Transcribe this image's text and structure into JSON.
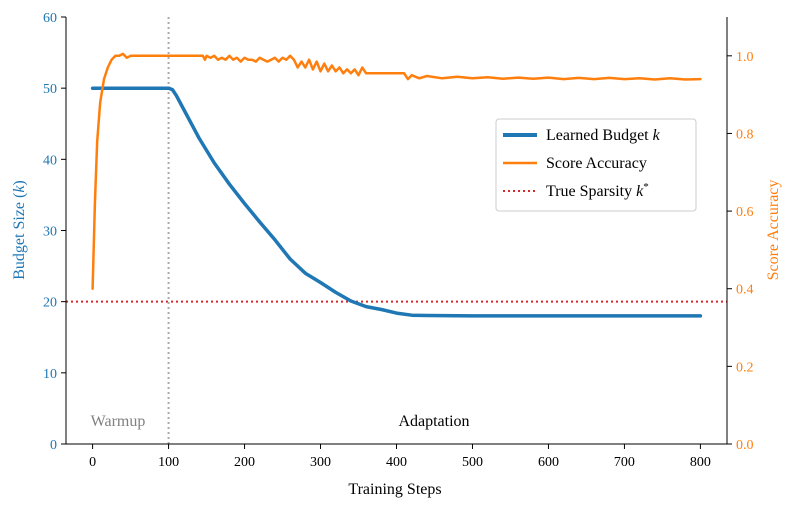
{
  "chart_data": {
    "type": "line",
    "title": "",
    "xlabel": "Training Steps",
    "ylabel_left": "Budget Size (k)",
    "ylabel_right": "Score Accuracy",
    "xlim": [
      -35,
      835
    ],
    "ylim_left": [
      0,
      60
    ],
    "ylim_right": [
      0,
      1.1
    ],
    "x_ticks": [
      0,
      100,
      200,
      300,
      400,
      500,
      600,
      700,
      800
    ],
    "y_left_ticks": [
      0,
      10,
      20,
      30,
      40,
      50,
      60
    ],
    "y_right_ticks": [
      0.0,
      0.2,
      0.4,
      0.6,
      0.8,
      1.0
    ],
    "y_right_tick_labels": [
      "0.0",
      "0.2",
      "0.4",
      "0.6",
      "0.8",
      "1.0"
    ],
    "left_axis_color": "#1f77b4",
    "right_axis_color": "#ff7f0e",
    "series": [
      {
        "name": "Learned Budget k",
        "axis": "left",
        "color": "#1f77b4",
        "x": [
          0,
          20,
          40,
          60,
          80,
          100,
          105,
          110,
          120,
          140,
          160,
          180,
          200,
          220,
          240,
          260,
          280,
          300,
          320,
          340,
          360,
          380,
          400,
          420,
          440,
          500,
          600,
          700,
          800
        ],
        "y": [
          50,
          50,
          50,
          50,
          50,
          50,
          49.8,
          49,
          47,
          43,
          39.5,
          36.5,
          33.8,
          31.2,
          28.7,
          26,
          24,
          22.7,
          21.3,
          20.1,
          19.3,
          18.9,
          18.4,
          18.1,
          18.05,
          18,
          18,
          18,
          18
        ]
      },
      {
        "name": "Score Accuracy",
        "axis": "right",
        "color": "#ff7f0e",
        "x": [
          0,
          3,
          6,
          10,
          15,
          20,
          25,
          30,
          35,
          40,
          45,
          50,
          60,
          80,
          100,
          120,
          145,
          148,
          150,
          155,
          160,
          165,
          170,
          175,
          180,
          185,
          190,
          195,
          200,
          205,
          210,
          215,
          220,
          225,
          230,
          235,
          240,
          245,
          250,
          255,
          260,
          265,
          270,
          275,
          280,
          285,
          290,
          295,
          300,
          305,
          310,
          315,
          320,
          325,
          330,
          335,
          340,
          345,
          350,
          355,
          360,
          370,
          380,
          390,
          400,
          410,
          415,
          420,
          430,
          440,
          460,
          480,
          500,
          520,
          540,
          560,
          580,
          600,
          620,
          640,
          660,
          680,
          700,
          720,
          740,
          760,
          780,
          800
        ],
        "y": [
          0.4,
          0.62,
          0.78,
          0.88,
          0.94,
          0.97,
          0.99,
          1.0,
          1.0,
          1.005,
          0.995,
          1.0,
          1.0,
          1.0,
          1.0,
          1.0,
          1.0,
          0.99,
          1.0,
          0.995,
          1.0,
          0.99,
          0.995,
          0.99,
          1.0,
          0.99,
          0.995,
          0.985,
          0.995,
          0.99,
          0.99,
          0.985,
          0.995,
          0.99,
          0.985,
          0.99,
          0.995,
          0.985,
          0.995,
          0.99,
          1.0,
          0.99,
          0.97,
          0.985,
          0.97,
          0.99,
          0.965,
          0.985,
          0.96,
          0.98,
          0.96,
          0.975,
          0.96,
          0.97,
          0.955,
          0.965,
          0.955,
          0.965,
          0.95,
          0.97,
          0.955,
          0.955,
          0.955,
          0.955,
          0.955,
          0.955,
          0.94,
          0.95,
          0.942,
          0.948,
          0.942,
          0.946,
          0.942,
          0.945,
          0.941,
          0.944,
          0.941,
          0.944,
          0.94,
          0.943,
          0.94,
          0.943,
          0.94,
          0.942,
          0.939,
          0.942,
          0.939,
          0.94
        ]
      }
    ],
    "reference_lines": [
      {
        "name": "True Sparsity k*",
        "axis": "left",
        "orientation": "horizontal",
        "value": 20,
        "color": "#d62728",
        "style": "dotted"
      },
      {
        "name": "warmup-boundary",
        "axis": "x",
        "orientation": "vertical",
        "value": 100,
        "color": "#aaaaaa",
        "style": "dotted"
      }
    ],
    "legend": {
      "placement": "center-right",
      "entries": [
        {
          "label": "Learned Budget ",
          "label_italic": "k",
          "label_sup": "",
          "color": "#1f77b4",
          "style": "solid-thick"
        },
        {
          "label": "Score Accuracy",
          "label_italic": "",
          "label_sup": "",
          "color": "#ff7f0e",
          "style": "solid"
        },
        {
          "label": "True Sparsity ",
          "label_italic": "k",
          "label_sup": "*",
          "color": "#d62728",
          "style": "dotted"
        }
      ]
    },
    "annotations": [
      {
        "text": "Warmup",
        "color": "#808080"
      },
      {
        "text": "Adaptation",
        "color": "#000000"
      }
    ]
  }
}
